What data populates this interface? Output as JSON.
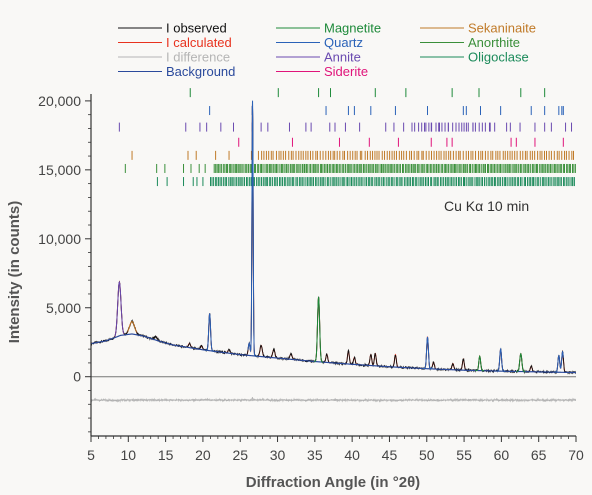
{
  "chart_data": {
    "type": "line",
    "xlabel": "Diffraction Angle (in °2θ)",
    "ylabel": "Intensity (in counts)",
    "xlim": [
      5,
      70
    ],
    "ylim": [
      -4300,
      20500
    ],
    "xticks": [
      5,
      10,
      15,
      20,
      25,
      30,
      35,
      40,
      45,
      50,
      55,
      60,
      65,
      70
    ],
    "yticks": [
      0,
      5000,
      10000,
      15000,
      20000
    ],
    "ytick_labels": [
      "0",
      "5,000",
      "10,000",
      "15,000",
      "20,000"
    ],
    "annotation": "Cu Kα 10 min",
    "difference_offset": -1700,
    "legend": [
      {
        "name": "I observed",
        "color": "#111111"
      },
      {
        "name": "I calculated",
        "color": "#e8321e"
      },
      {
        "name": "I difference",
        "color": "#b5b5b5"
      },
      {
        "name": "Background",
        "color": "#2b4a9c"
      },
      {
        "name": "Magnetite",
        "color": "#1e8a3a"
      },
      {
        "name": "Quartz",
        "color": "#2a62b8"
      },
      {
        "name": "Annite",
        "color": "#6a4ab0"
      },
      {
        "name": "Siderite",
        "color": "#e0147a"
      },
      {
        "name": "Sekaninaite",
        "color": "#c07a28"
      },
      {
        "name": "Anorthite",
        "color": "#3a8f3a"
      },
      {
        "name": "Oligoclase",
        "color": "#1b8a5a"
      }
    ],
    "background": {
      "x": [
        5,
        7,
        9,
        10.5,
        12,
        14,
        16,
        20,
        25,
        30,
        35,
        40,
        45,
        50,
        55,
        60,
        65,
        70
      ],
      "y": [
        2400,
        2600,
        3000,
        3100,
        2950,
        2600,
        2300,
        1950,
        1600,
        1350,
        1100,
        900,
        720,
        580,
        470,
        400,
        350,
        300
      ]
    },
    "peaks": [
      {
        "x": 8.8,
        "h": 3900,
        "w": 0.22
      },
      {
        "x": 10.5,
        "h": 900,
        "w": 0.35
      },
      {
        "x": 13.7,
        "h": 250,
        "w": 0.2
      },
      {
        "x": 18.2,
        "h": 300,
        "w": 0.15
      },
      {
        "x": 19.8,
        "h": 250,
        "w": 0.15
      },
      {
        "x": 20.9,
        "h": 2700,
        "w": 0.12
      },
      {
        "x": 23.5,
        "h": 250,
        "w": 0.15
      },
      {
        "x": 26.2,
        "h": 900,
        "w": 0.12
      },
      {
        "x": 26.65,
        "h": 18500,
        "w": 0.08
      },
      {
        "x": 27.8,
        "h": 800,
        "w": 0.15
      },
      {
        "x": 29.5,
        "h": 600,
        "w": 0.15
      },
      {
        "x": 31.8,
        "h": 400,
        "w": 0.15
      },
      {
        "x": 35.5,
        "h": 4700,
        "w": 0.14
      },
      {
        "x": 36.6,
        "h": 600,
        "w": 0.12
      },
      {
        "x": 39.5,
        "h": 950,
        "w": 0.12
      },
      {
        "x": 40.3,
        "h": 500,
        "w": 0.12
      },
      {
        "x": 42.5,
        "h": 800,
        "w": 0.12
      },
      {
        "x": 43.1,
        "h": 900,
        "w": 0.12
      },
      {
        "x": 45.8,
        "h": 900,
        "w": 0.12
      },
      {
        "x": 50.1,
        "h": 2300,
        "w": 0.12
      },
      {
        "x": 50.9,
        "h": 500,
        "w": 0.12
      },
      {
        "x": 53.5,
        "h": 450,
        "w": 0.12
      },
      {
        "x": 54.9,
        "h": 800,
        "w": 0.12
      },
      {
        "x": 57.1,
        "h": 1050,
        "w": 0.12
      },
      {
        "x": 59.9,
        "h": 1600,
        "w": 0.12
      },
      {
        "x": 62.6,
        "h": 1300,
        "w": 0.14
      },
      {
        "x": 64.0,
        "h": 400,
        "w": 0.12
      },
      {
        "x": 67.7,
        "h": 1200,
        "w": 0.12
      },
      {
        "x": 68.2,
        "h": 1500,
        "w": 0.12
      }
    ],
    "reflection_rows": [
      {
        "phase": "Magnetite",
        "color": "#1e8a3a",
        "y": 20600,
        "x": [
          18.3,
          30.1,
          35.5,
          37.1,
          43.1,
          47.2,
          53.4,
          57.0,
          62.6,
          65.8
        ]
      },
      {
        "phase": "Quartz",
        "color": "#2a62b8",
        "y": 19300,
        "x": [
          20.9,
          26.6,
          36.5,
          39.5,
          40.3,
          42.5,
          45.8,
          50.1,
          54.9,
          55.3,
          57.2,
          59.9,
          64.0,
          65.8,
          67.7,
          68.1,
          68.3
        ]
      },
      {
        "phase": "Annite",
        "color": "#6a4ab0",
        "y": 18100,
        "x": [
          8.8,
          17.7,
          19.6,
          20.5,
          22.4,
          24.1,
          26.6,
          27.8,
          28.7,
          31.6,
          33.8,
          34.5,
          37.0,
          37.7,
          39.1,
          41.0,
          44.5,
          45.6,
          46.9,
          49.7,
          50.6,
          51.6,
          52.9,
          55.0,
          56.2,
          58.5,
          59.1,
          60.7,
          61.2,
          62.5,
          64.5,
          65.8,
          66.7,
          68.6,
          69.4
        ],
        "range": [
          48,
          58.5,
          0.45
        ]
      },
      {
        "phase": "Siderite",
        "color": "#e0147a",
        "y": 17000,
        "x": [
          24.8,
          32.0,
          38.3,
          42.3,
          46.2,
          50.6,
          52.7,
          53.4,
          61.3,
          62.0,
          64.5,
          68.3
        ]
      },
      {
        "phase": "Sekaninaite",
        "color": "#c07a28",
        "y": 16050,
        "x": [
          10.5,
          18.0,
          19.1,
          21.7,
          23.5,
          26.5
        ],
        "range": [
          27.5,
          70,
          0.33
        ]
      },
      {
        "phase": "Anorthite",
        "color": "#3a8f3a",
        "y": 15100,
        "x": [
          9.6,
          13.8,
          14.9,
          17.4,
          18.4,
          19.5,
          20.3
        ],
        "range": [
          21.5,
          70,
          0.2
        ]
      },
      {
        "phase": "Oligoclase",
        "color": "#1b8a5a",
        "y": 14150,
        "x": [
          13.9,
          15.2,
          17.4,
          18.7,
          19.2,
          20.0
        ],
        "range": [
          21,
          70,
          0.22
        ]
      }
    ]
  }
}
